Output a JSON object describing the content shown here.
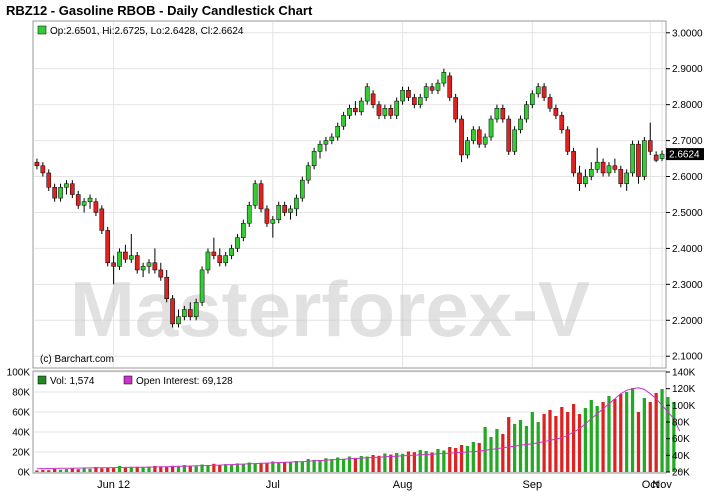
{
  "title": "RBZ12 - Gasoline RBOB - Daily Candlestick Chart",
  "watermark": "Masterforex-V",
  "copyright": "(c) Barchart.com",
  "ohlc_legend": "Op:2.6501, Hi:2.6725, Lo:2.6428, Cl:2.6624",
  "last_price": "2.6624",
  "volume_legend": {
    "vol": "Vol: 1,574",
    "oi": "Open Interest: 69,128"
  },
  "colors": {
    "up": "#33cc33",
    "down": "#dd2222",
    "oi": "#cc33cc",
    "price_box": "#000000",
    "grid": "#e4e4e4"
  },
  "chart_data": [
    {
      "type": "candlestick",
      "title": "RBZ12 - Gasoline RBOB - Daily Candlestick Chart",
      "y_ticks": [
        "2.1000",
        "2.2000",
        "2.3000",
        "2.4000",
        "2.5000",
        "2.6000",
        "2.7000",
        "2.8000",
        "2.9000",
        "3.0000"
      ],
      "ylim": [
        2.07,
        3.03
      ],
      "x_labels": [
        "Jun 12",
        "Jul",
        "Aug",
        "Sep",
        "Oct",
        "Nov"
      ],
      "candles": [
        {
          "o": 2.64,
          "h": 2.65,
          "l": 2.62,
          "c": 2.63
        },
        {
          "o": 2.63,
          "h": 2.64,
          "l": 2.6,
          "c": 2.61
        },
        {
          "o": 2.61,
          "h": 2.62,
          "l": 2.56,
          "c": 2.57
        },
        {
          "o": 2.57,
          "h": 2.58,
          "l": 2.53,
          "c": 2.54
        },
        {
          "o": 2.54,
          "h": 2.58,
          "l": 2.53,
          "c": 2.57
        },
        {
          "o": 2.57,
          "h": 2.59,
          "l": 2.55,
          "c": 2.58
        },
        {
          "o": 2.58,
          "h": 2.59,
          "l": 2.54,
          "c": 2.55
        },
        {
          "o": 2.55,
          "h": 2.56,
          "l": 2.51,
          "c": 2.52
        },
        {
          "o": 2.52,
          "h": 2.54,
          "l": 2.5,
          "c": 2.53
        },
        {
          "o": 2.53,
          "h": 2.55,
          "l": 2.51,
          "c": 2.54
        },
        {
          "o": 2.53,
          "h": 2.54,
          "l": 2.49,
          "c": 2.5
        },
        {
          "o": 2.51,
          "h": 2.52,
          "l": 2.44,
          "c": 2.45
        },
        {
          "o": 2.45,
          "h": 2.46,
          "l": 2.35,
          "c": 2.36
        },
        {
          "o": 2.36,
          "h": 2.38,
          "l": 2.3,
          "c": 2.35
        },
        {
          "o": 2.35,
          "h": 2.4,
          "l": 2.34,
          "c": 2.39
        },
        {
          "o": 2.39,
          "h": 2.41,
          "l": 2.36,
          "c": 2.37
        },
        {
          "o": 2.37,
          "h": 2.44,
          "l": 2.36,
          "c": 2.38
        },
        {
          "o": 2.38,
          "h": 2.39,
          "l": 2.33,
          "c": 2.34
        },
        {
          "o": 2.34,
          "h": 2.36,
          "l": 2.32,
          "c": 2.35
        },
        {
          "o": 2.35,
          "h": 2.37,
          "l": 2.33,
          "c": 2.36
        },
        {
          "o": 2.36,
          "h": 2.4,
          "l": 2.33,
          "c": 2.34
        },
        {
          "o": 2.34,
          "h": 2.36,
          "l": 2.31,
          "c": 2.32
        },
        {
          "o": 2.32,
          "h": 2.34,
          "l": 2.25,
          "c": 2.26
        },
        {
          "o": 2.26,
          "h": 2.27,
          "l": 2.18,
          "c": 2.19
        },
        {
          "o": 2.19,
          "h": 2.23,
          "l": 2.18,
          "c": 2.21
        },
        {
          "o": 2.21,
          "h": 2.24,
          "l": 2.2,
          "c": 2.23
        },
        {
          "o": 2.23,
          "h": 2.25,
          "l": 2.2,
          "c": 2.21
        },
        {
          "o": 2.21,
          "h": 2.26,
          "l": 2.2,
          "c": 2.25
        },
        {
          "o": 2.25,
          "h": 2.35,
          "l": 2.24,
          "c": 2.34
        },
        {
          "o": 2.34,
          "h": 2.4,
          "l": 2.33,
          "c": 2.39
        },
        {
          "o": 2.39,
          "h": 2.43,
          "l": 2.37,
          "c": 2.38
        },
        {
          "o": 2.38,
          "h": 2.4,
          "l": 2.35,
          "c": 2.36
        },
        {
          "o": 2.36,
          "h": 2.39,
          "l": 2.35,
          "c": 2.38
        },
        {
          "o": 2.38,
          "h": 2.41,
          "l": 2.37,
          "c": 2.4
        },
        {
          "o": 2.4,
          "h": 2.44,
          "l": 2.39,
          "c": 2.43
        },
        {
          "o": 2.43,
          "h": 2.48,
          "l": 2.42,
          "c": 2.47
        },
        {
          "o": 2.47,
          "h": 2.53,
          "l": 2.46,
          "c": 2.52
        },
        {
          "o": 2.52,
          "h": 2.59,
          "l": 2.51,
          "c": 2.58
        },
        {
          "o": 2.58,
          "h": 2.59,
          "l": 2.5,
          "c": 2.51
        },
        {
          "o": 2.51,
          "h": 2.52,
          "l": 2.46,
          "c": 2.47
        },
        {
          "o": 2.47,
          "h": 2.49,
          "l": 2.43,
          "c": 2.48
        },
        {
          "o": 2.48,
          "h": 2.53,
          "l": 2.47,
          "c": 2.52
        },
        {
          "o": 2.52,
          "h": 2.53,
          "l": 2.49,
          "c": 2.5
        },
        {
          "o": 2.5,
          "h": 2.52,
          "l": 2.48,
          "c": 2.51
        },
        {
          "o": 2.51,
          "h": 2.55,
          "l": 2.49,
          "c": 2.54
        },
        {
          "o": 2.54,
          "h": 2.6,
          "l": 2.53,
          "c": 2.59
        },
        {
          "o": 2.59,
          "h": 2.64,
          "l": 2.58,
          "c": 2.63
        },
        {
          "o": 2.63,
          "h": 2.68,
          "l": 2.62,
          "c": 2.67
        },
        {
          "o": 2.67,
          "h": 2.7,
          "l": 2.65,
          "c": 2.69
        },
        {
          "o": 2.69,
          "h": 2.71,
          "l": 2.67,
          "c": 2.7
        },
        {
          "o": 2.7,
          "h": 2.72,
          "l": 2.69,
          "c": 2.71
        },
        {
          "o": 2.71,
          "h": 2.75,
          "l": 2.7,
          "c": 2.74
        },
        {
          "o": 2.74,
          "h": 2.78,
          "l": 2.73,
          "c": 2.77
        },
        {
          "o": 2.77,
          "h": 2.8,
          "l": 2.76,
          "c": 2.79
        },
        {
          "o": 2.79,
          "h": 2.81,
          "l": 2.77,
          "c": 2.78
        },
        {
          "o": 2.78,
          "h": 2.82,
          "l": 2.77,
          "c": 2.81
        },
        {
          "o": 2.81,
          "h": 2.86,
          "l": 2.8,
          "c": 2.85
        },
        {
          "o": 2.83,
          "h": 2.84,
          "l": 2.79,
          "c": 2.8
        },
        {
          "o": 2.8,
          "h": 2.81,
          "l": 2.76,
          "c": 2.77
        },
        {
          "o": 2.77,
          "h": 2.8,
          "l": 2.76,
          "c": 2.79
        },
        {
          "o": 2.79,
          "h": 2.8,
          "l": 2.76,
          "c": 2.77
        },
        {
          "o": 2.77,
          "h": 2.82,
          "l": 2.76,
          "c": 2.81
        },
        {
          "o": 2.81,
          "h": 2.85,
          "l": 2.8,
          "c": 2.84
        },
        {
          "o": 2.84,
          "h": 2.85,
          "l": 2.81,
          "c": 2.82
        },
        {
          "o": 2.82,
          "h": 2.83,
          "l": 2.79,
          "c": 2.8
        },
        {
          "o": 2.8,
          "h": 2.83,
          "l": 2.79,
          "c": 2.82
        },
        {
          "o": 2.82,
          "h": 2.86,
          "l": 2.81,
          "c": 2.85
        },
        {
          "o": 2.85,
          "h": 2.86,
          "l": 2.83,
          "c": 2.84
        },
        {
          "o": 2.84,
          "h": 2.87,
          "l": 2.83,
          "c": 2.86
        },
        {
          "o": 2.86,
          "h": 2.9,
          "l": 2.85,
          "c": 2.89
        },
        {
          "o": 2.88,
          "h": 2.89,
          "l": 2.81,
          "c": 2.82
        },
        {
          "o": 2.82,
          "h": 2.83,
          "l": 2.75,
          "c": 2.76
        },
        {
          "o": 2.76,
          "h": 2.77,
          "l": 2.64,
          "c": 2.66
        },
        {
          "o": 2.66,
          "h": 2.71,
          "l": 2.65,
          "c": 2.7
        },
        {
          "o": 2.7,
          "h": 2.74,
          "l": 2.69,
          "c": 2.73
        },
        {
          "o": 2.73,
          "h": 2.74,
          "l": 2.68,
          "c": 2.69
        },
        {
          "o": 2.69,
          "h": 2.72,
          "l": 2.68,
          "c": 2.71
        },
        {
          "o": 2.71,
          "h": 2.77,
          "l": 2.7,
          "c": 2.76
        },
        {
          "o": 2.76,
          "h": 2.8,
          "l": 2.75,
          "c": 2.79
        },
        {
          "o": 2.79,
          "h": 2.8,
          "l": 2.75,
          "c": 2.76
        },
        {
          "o": 2.76,
          "h": 2.77,
          "l": 2.66,
          "c": 2.67
        },
        {
          "o": 2.67,
          "h": 2.74,
          "l": 2.66,
          "c": 2.73
        },
        {
          "o": 2.73,
          "h": 2.77,
          "l": 2.72,
          "c": 2.76
        },
        {
          "o": 2.76,
          "h": 2.81,
          "l": 2.75,
          "c": 2.8
        },
        {
          "o": 2.8,
          "h": 2.84,
          "l": 2.79,
          "c": 2.83
        },
        {
          "o": 2.83,
          "h": 2.86,
          "l": 2.82,
          "c": 2.85
        },
        {
          "o": 2.85,
          "h": 2.86,
          "l": 2.81,
          "c": 2.82
        },
        {
          "o": 2.82,
          "h": 2.83,
          "l": 2.78,
          "c": 2.79
        },
        {
          "o": 2.79,
          "h": 2.8,
          "l": 2.76,
          "c": 2.77
        },
        {
          "o": 2.77,
          "h": 2.78,
          "l": 2.72,
          "c": 2.73
        },
        {
          "o": 2.73,
          "h": 2.74,
          "l": 2.66,
          "c": 2.67
        },
        {
          "o": 2.67,
          "h": 2.68,
          "l": 2.6,
          "c": 2.61
        },
        {
          "o": 2.61,
          "h": 2.63,
          "l": 2.56,
          "c": 2.58
        },
        {
          "o": 2.58,
          "h": 2.62,
          "l": 2.57,
          "c": 2.6
        },
        {
          "o": 2.6,
          "h": 2.64,
          "l": 2.59,
          "c": 2.62
        },
        {
          "o": 2.62,
          "h": 2.68,
          "l": 2.61,
          "c": 2.64
        },
        {
          "o": 2.64,
          "h": 2.65,
          "l": 2.6,
          "c": 2.61
        },
        {
          "o": 2.61,
          "h": 2.64,
          "l": 2.6,
          "c": 2.63
        },
        {
          "o": 2.63,
          "h": 2.65,
          "l": 2.61,
          "c": 2.62
        },
        {
          "o": 2.62,
          "h": 2.63,
          "l": 2.57,
          "c": 2.58
        },
        {
          "o": 2.58,
          "h": 2.62,
          "l": 2.56,
          "c": 2.61
        },
        {
          "o": 2.61,
          "h": 2.7,
          "l": 2.6,
          "c": 2.69
        },
        {
          "o": 2.69,
          "h": 2.7,
          "l": 2.58,
          "c": 2.6
        },
        {
          "o": 2.6,
          "h": 2.71,
          "l": 2.59,
          "c": 2.7
        },
        {
          "o": 2.7,
          "h": 2.75,
          "l": 2.66,
          "c": 2.67
        },
        {
          "o": 2.66,
          "h": 2.67,
          "l": 2.64,
          "c": 2.645
        },
        {
          "o": 2.6501,
          "h": 2.6725,
          "l": 2.6428,
          "c": 2.6624
        }
      ]
    },
    {
      "type": "bar",
      "title": "Volume and Open Interest",
      "y_ticks_left": [
        "0K",
        "20K",
        "40K",
        "60K",
        "80K",
        "100K"
      ],
      "y_ticks_right": [
        "20K",
        "40K",
        "60K",
        "80K",
        "100K",
        "120K",
        "140K"
      ],
      "ylim_volume": [
        0,
        100000
      ],
      "ylim_open_interest": [
        20000,
        140000
      ],
      "series": [
        {
          "name": "Vol: 1,574",
          "values": [
            1500,
            2200,
            1800,
            3000,
            2400,
            2900,
            3500,
            2800,
            4100,
            3200,
            5000,
            3700,
            4500,
            3900,
            6000,
            4300,
            4800,
            5200,
            4600,
            5400,
            6100,
            5300,
            5000,
            6200,
            5600,
            7000,
            6400,
            5800,
            7500,
            6800,
            8200,
            7000,
            7900,
            7400,
            8600,
            7800,
            9500,
            8200,
            9000,
            8800,
            10500,
            9400,
            10000,
            9600,
            11000,
            10400,
            13000,
            12100,
            11500,
            13800,
            12900,
            14500,
            13200,
            15500,
            14100,
            16000,
            15500,
            17000,
            16200,
            18500,
            17400,
            19000,
            18200,
            20500,
            19800,
            22000,
            21000,
            19500,
            23000,
            21500,
            25000,
            24000,
            27000,
            26000,
            30000,
            29000,
            45000,
            35000,
            43000,
            38000,
            55000,
            48000,
            52000,
            46000,
            60000,
            50000,
            58000,
            62000,
            56000,
            65000,
            60000,
            68000,
            58000,
            64000,
            72000,
            66000,
            70000,
            76000,
            73000,
            78000,
            80000,
            84000,
            60000,
            74000,
            70000,
            79000,
            83000,
            75000,
            70000,
            1574
          ]
        },
        {
          "name": "Open Interest: 69,128",
          "values": [
            24000,
            24100,
            24200,
            24300,
            24400,
            24500,
            24600,
            24700,
            24800,
            24900,
            25000,
            25100,
            25200,
            25300,
            25400,
            25500,
            25600,
            25700,
            25800,
            25900,
            26000,
            26200,
            26400,
            26600,
            26800,
            27000,
            27200,
            27400,
            27600,
            27800,
            28000,
            28300,
            28600,
            28900,
            29200,
            29500,
            29800,
            30100,
            30400,
            30700,
            31000,
            31300,
            31600,
            31900,
            32200,
            32500,
            33000,
            33400,
            33800,
            34200,
            34600,
            35000,
            35400,
            35800,
            36200,
            36600,
            37000,
            37400,
            37800,
            38200,
            38600,
            39000,
            39400,
            39800,
            40200,
            40600,
            41000,
            41400,
            41800,
            42200,
            42600,
            43000,
            43500,
            44000,
            44500,
            45000,
            46000,
            47000,
            48000,
            49000,
            50000,
            51000,
            52000,
            53000,
            54000,
            55000,
            56500,
            58000,
            59500,
            61000,
            64000,
            68000,
            72000,
            78000,
            84000,
            90000,
            96000,
            102000,
            108000,
            114000,
            118000,
            120000,
            121000,
            119000,
            114000,
            108000,
            100000,
            92000,
            84000,
            69128
          ]
        }
      ],
      "x_labels": [
        "Jun 12",
        "Jul",
        "Aug",
        "Sep",
        "Oct",
        "Nov"
      ]
    }
  ]
}
